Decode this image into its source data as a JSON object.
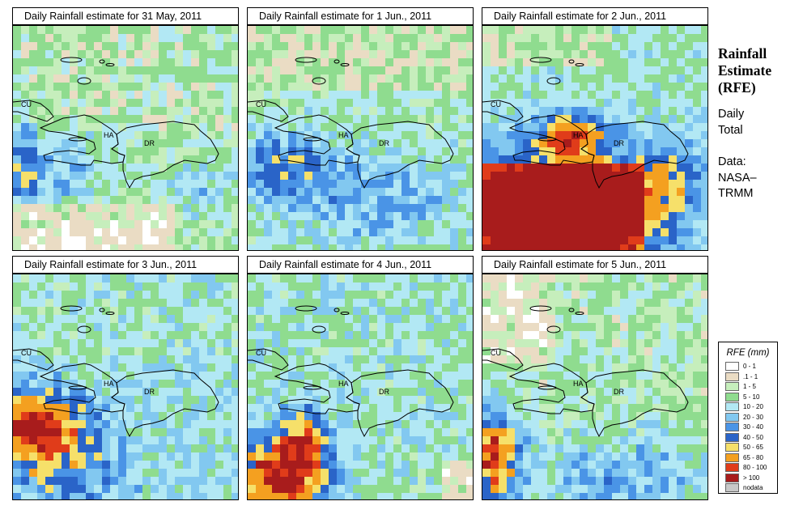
{
  "panels": [
    {
      "title": "Daily Rainfall estimate for  31 May, 2011",
      "scenario": 0
    },
    {
      "title": "Daily Rainfall estimate for  1 Jun., 2011",
      "scenario": 1
    },
    {
      "title": "Daily Rainfall estimate for  2 Jun., 2011",
      "scenario": 2
    },
    {
      "title": "Daily Rainfall estimate for  3 Jun., 2011",
      "scenario": 3
    },
    {
      "title": "Daily Rainfall estimate for  4 Jun., 2011",
      "scenario": 4
    },
    {
      "title": "Daily Rainfall estimate for  5 Jun., 2011",
      "scenario": 5
    }
  ],
  "map_labels": {
    "cu": "CU",
    "ha": "HA",
    "dr": "DR"
  },
  "sidebar": {
    "title_lines": [
      "Rainfall",
      "Estimate",
      "(RFE)"
    ],
    "period_lines": [
      "Daily",
      "Total"
    ],
    "source_lines": [
      "Data:",
      "NASA–",
      "TRMM"
    ]
  },
  "legend": {
    "title": "RFE (mm)",
    "items": [
      {
        "label": "0 - 1",
        "color": "#ffffff"
      },
      {
        "label": ".1 - 1",
        "color": "#eadcc4"
      },
      {
        "label": "1 - 5",
        "color": "#c6eebc"
      },
      {
        "label": "5 - 10",
        "color": "#8fdc8f"
      },
      {
        "label": "10 - 20",
        "color": "#b2e8f4"
      },
      {
        "label": "20 - 30",
        "color": "#82c8f0"
      },
      {
        "label": "30 - 40",
        "color": "#4a94e6"
      },
      {
        "label": "40 - 50",
        "color": "#2a64c8"
      },
      {
        "label": "50 - 65",
        "color": "#f6e06a"
      },
      {
        "label": "65 - 80",
        "color": "#f4a020"
      },
      {
        "label": "80 - 100",
        "color": "#e03c1a"
      },
      {
        "label": "> 100",
        "color": "#a81c1c"
      },
      {
        "label": "nodata",
        "color": "#c8c8c8"
      }
    ]
  }
}
